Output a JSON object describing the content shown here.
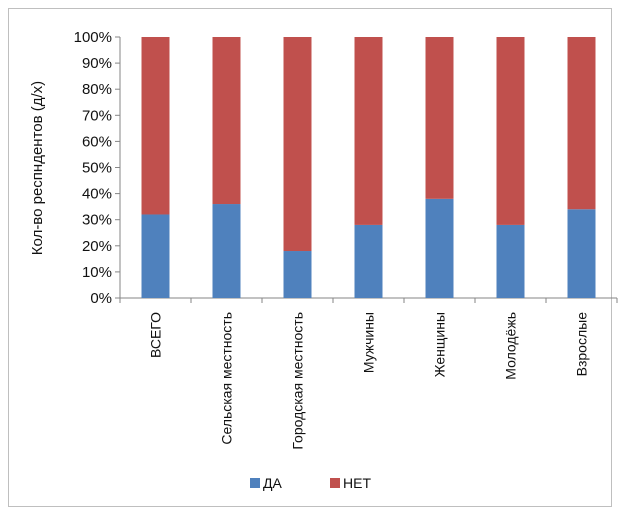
{
  "chart_data": {
    "type": "bar",
    "stacked": true,
    "percent": true,
    "title": "",
    "xlabel": "",
    "ylabel": "Кол-во респндентов (д/х)",
    "ylim": [
      0,
      100
    ],
    "yticks": [
      "0%",
      "10%",
      "20%",
      "30%",
      "40%",
      "50%",
      "60%",
      "70%",
      "80%",
      "90%",
      "100%"
    ],
    "categories": [
      "ВСЕГО",
      "Сельская местность",
      "Городская местность",
      "Мужчины",
      "Женщины",
      "Молодёжь",
      "Взрослые"
    ],
    "series": [
      {
        "name": "ДА",
        "color": "#4f81bd",
        "values": [
          32,
          36,
          18,
          28,
          38,
          28,
          34
        ]
      },
      {
        "name": "НЕТ",
        "color": "#c0504d",
        "values": [
          68,
          64,
          82,
          72,
          62,
          72,
          66
        ]
      }
    ],
    "grid": false,
    "legend_position": "bottom"
  }
}
